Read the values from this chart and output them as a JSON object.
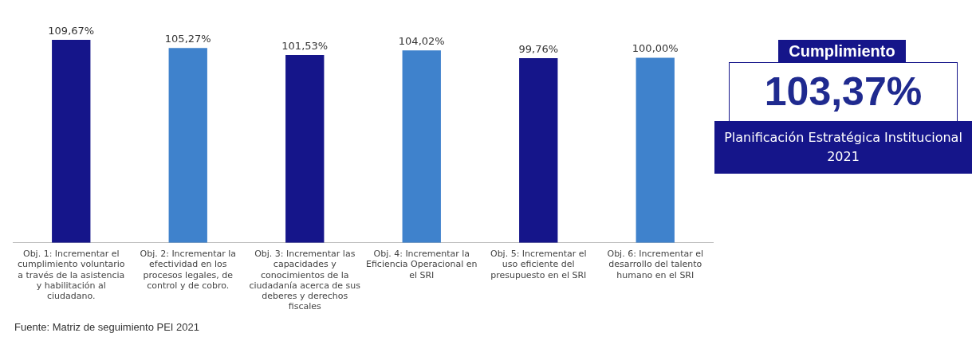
{
  "chart_data": [
    {
      "type": "bar",
      "categories": [
        "Obj. 1: Incrementar el cumplimiento voluntario a través de la asistencia y habilitación al ciudadano.",
        "Obj. 2: Incrementar la efectividad en los procesos legales, de control y de cobro.",
        "Obj. 3: Incrementar las capacidades y conocimientos de la ciudadanía acerca de sus deberes y derechos fiscales",
        "Obj. 4: Incrementar la Eficiencia Operacional en el SRI",
        "Obj. 5: Incrementar el uso eficiente del presupuesto en el SRI",
        "Obj. 6: Incrementar el desarrollo del talento humano en el SRI"
      ],
      "values": [
        109.67,
        105.27,
        101.53,
        104.02,
        99.76,
        100.0
      ],
      "colors": [
        "#15158a",
        "#3f82cc",
        "#15158a",
        "#3f82cc",
        "#15158a",
        "#3f82cc"
      ],
      "value_labels": [
        "109,67%",
        "105,27%",
        "101,53%",
        "104,02%",
        "99,76%",
        "100,00%"
      ],
      "tick_labels": "x",
      "grid": false,
      "legend": false,
      "annotations": [
        "Fuente: Matriz de seguimiento PEI 2021"
      ]
    },
    {
      "type": "other",
      "title": "Cumplimiento",
      "annotations": [
        "103,37%",
        "Planificación Estratégica Institucional 2021"
      ]
    }
  ]
}
